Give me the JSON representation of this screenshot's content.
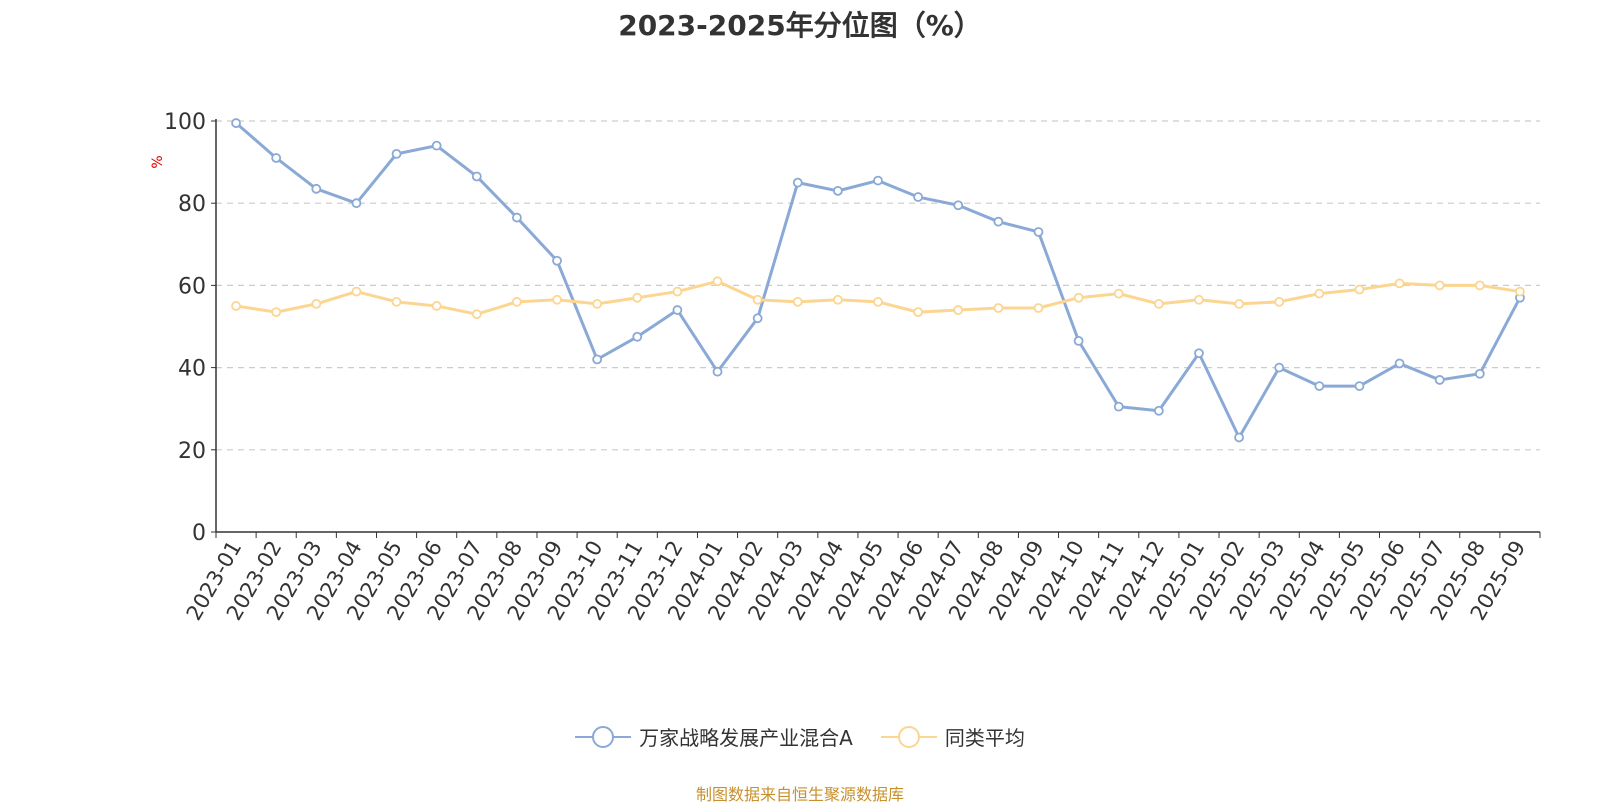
{
  "title": "2023-2025年分位图（%）",
  "source": "制图数据来自恒生聚源数据库",
  "colors": {
    "series1": "#8aa9d6",
    "series2": "#fcd591",
    "ylabel": "#e00000",
    "grid": "#cccccc",
    "axis": "#333333"
  },
  "chart_data": {
    "type": "line",
    "title": "2023-2025年分位图（%）",
    "ylabel": "%",
    "ylim": [
      0,
      100
    ],
    "yticks": [
      0,
      20,
      40,
      60,
      80,
      100
    ],
    "grid": "horizontal dashed",
    "legend": "bottom-center",
    "categories": [
      "2023-01",
      "2023-02",
      "2023-03",
      "2023-04",
      "2023-05",
      "2023-06",
      "2023-07",
      "2023-08",
      "2023-09",
      "2023-10",
      "2023-11",
      "2023-12",
      "2024-01",
      "2024-02",
      "2024-03",
      "2024-04",
      "2024-05",
      "2024-06",
      "2024-07",
      "2024-08",
      "2024-09",
      "2024-10",
      "2024-11",
      "2024-12",
      "2025-01",
      "2025-02",
      "2025-03",
      "2025-04",
      "2025-05",
      "2025-06",
      "2025-07",
      "2025-08",
      "2025-09"
    ],
    "series": [
      {
        "name": "万家战略发展产业混合A",
        "values": [
          99.5,
          91,
          83.5,
          80,
          92,
          94,
          86.5,
          76.5,
          66,
          42,
          47.5,
          54,
          39,
          52,
          85,
          83,
          85.5,
          81.5,
          79.5,
          75.5,
          73,
          46.5,
          30.5,
          29.5,
          43.5,
          23,
          40,
          35.5,
          35.5,
          41,
          37,
          38.5,
          57
        ]
      },
      {
        "name": "同类平均",
        "values": [
          55,
          53.5,
          55.5,
          58.5,
          56,
          55,
          53,
          56,
          56.5,
          55.5,
          57,
          58.5,
          61,
          56.5,
          56,
          56.5,
          56,
          53.5,
          54,
          54.5,
          54.5,
          57,
          58,
          55.5,
          56.5,
          55.5,
          56,
          58,
          59,
          60.5,
          60,
          60,
          58.5
        ]
      }
    ]
  }
}
